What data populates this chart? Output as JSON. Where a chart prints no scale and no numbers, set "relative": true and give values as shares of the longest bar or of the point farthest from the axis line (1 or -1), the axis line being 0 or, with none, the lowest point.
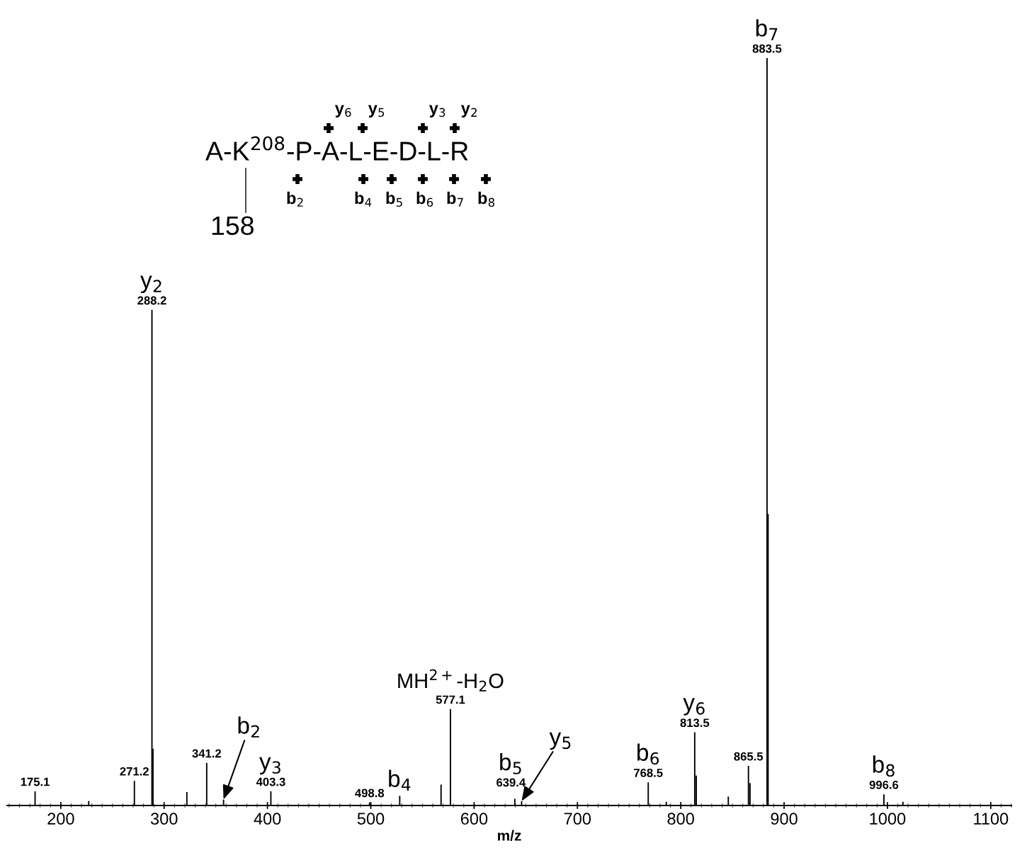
{
  "chart_data": {
    "type": "bar",
    "xlabel": "m/z",
    "relative": true,
    "x": [
      175.1,
      227,
      271.2,
      288.2,
      289.2,
      322,
      341.2,
      357.5,
      403.3,
      498.8,
      528,
      568,
      577.1,
      639.4,
      646,
      768.5,
      786,
      813.5,
      815,
      846,
      865.5,
      867,
      883.5,
      884.5,
      996.6,
      1015
    ],
    "values": [
      0.019,
      0.006,
      0.033,
      0.663,
      0.076,
      0.018,
      0.057,
      0.008,
      0.019,
      0.004,
      0.013,
      0.028,
      0.129,
      0.009,
      0.006,
      0.031,
      0.005,
      0.098,
      0.04,
      0.012,
      0.053,
      0.03,
      1.0,
      0.39,
      0.015,
      0.005
    ],
    "color": "#000000",
    "xlim": [
      148,
      1120
    ],
    "xticks": [
      200,
      300,
      400,
      500,
      600,
      700,
      800,
      900,
      1000,
      1100
    ],
    "annotations": [
      {
        "text": "175.1",
        "x": 175.1,
        "y": 0.019
      },
      {
        "text": "271.2",
        "x": 271.2,
        "y": 0.033
      },
      {
        "text": "288.2",
        "x": 288.2,
        "y": 0.663
      },
      {
        "text": "341.2",
        "x": 341.2,
        "y": 0.057
      },
      {
        "text": "403.3",
        "x": 403.3,
        "y": 0.019
      },
      {
        "text": "498.8",
        "x": 498.8,
        "y": 0.004
      },
      {
        "text": "577.1",
        "x": 577.1,
        "y": 0.129
      },
      {
        "text": "639.4",
        "x": 639.4,
        "y": 0.009
      },
      {
        "text": "768.5",
        "x": 768.5,
        "y": 0.031
      },
      {
        "text": "813.5",
        "x": 813.5,
        "y": 0.098
      },
      {
        "text": "865.5",
        "x": 865.5,
        "y": 0.053
      },
      {
        "text": "883.5",
        "x": 883.5,
        "y": 1.0
      },
      {
        "text": "996.6",
        "x": 996.6,
        "y": 0.015
      },
      {
        "text": "y$_{2}$",
        "x": 288.2,
        "y": 0.663
      },
      {
        "text": "b$_{7}$",
        "x": 883.5,
        "y": 1.0
      },
      {
        "text": "MH$^{2+}$-H$_{2}$O",
        "x": 577.1,
        "y": 0.129
      },
      {
        "text": "y$_{6}$",
        "x": 813.5,
        "y": 0.098
      },
      {
        "text": "b$_{6}$",
        "x": 768.5,
        "y": 0.031
      },
      {
        "text": "b$_{8}$",
        "x": 996.6,
        "y": 0.015
      },
      {
        "text": "y$_{3}$",
        "x": 403.3,
        "y": 0.019
      },
      {
        "text": "b$_{4}$",
        "x": 528,
        "y": 0.013
      },
      {
        "text": "b$_{5}$",
        "x": 639.4,
        "y": 0.009
      },
      {
        "text": "b$_{2}$",
        "x": 357.5,
        "y": 0.008
      },
      {
        "text": "y$_{5}$",
        "x": 646,
        "y": 0.006
      },
      "A-K$^{208}$-P-A-L-E-D-L-R",
      "158",
      "y$_{6}$",
      "y$_{5}$",
      "y$_{3}$",
      "y$_{2}$",
      "b$_{2}$",
      "b$_{4}$",
      "b$_{5}$",
      "b$_{6}$",
      "b$_{7}$",
      "b$_{8}$"
    ]
  }
}
